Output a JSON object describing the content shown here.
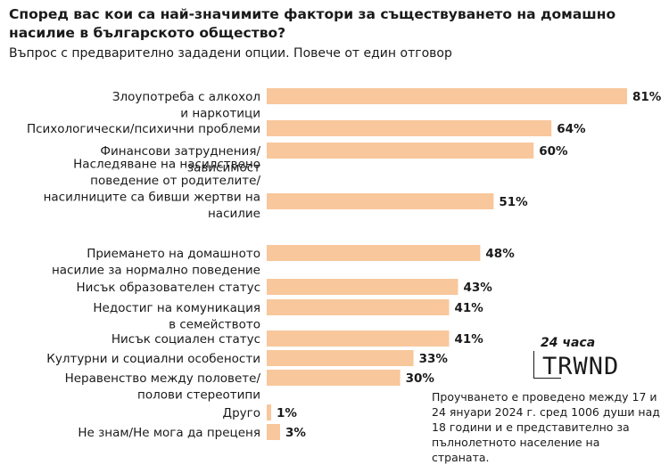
{
  "header": {
    "title": "Според вас кои са най-значимите фактори за съществуването на домашно насилие в българското общество?",
    "subtitle": "Въпрос с предварително зададени опции. Повече от един отговор"
  },
  "colors": {
    "bar": "#f8c79b",
    "text": "#1a1a1a",
    "background": "#ffffff"
  },
  "logo": {
    "brand": "24 часа",
    "word": "TRWND"
  },
  "footnote": "Проучването е проведено между 17 и 24 януари 2024 г. сред 1006 души над 18 години и е представително за пълнолетното население на страната.",
  "chart_data": {
    "type": "bar",
    "orientation": "horizontal",
    "categories": [
      "Злоупотреба с алкохол и наркотици",
      "Психологически/психични проблеми",
      "Финансови затруднения/ зависимост",
      "Наследяване на насилствено поведение от родителите/ насилниците са бивши жертви на насилие",
      "Приемането на домашното насилие за нормално поведение",
      "Нисък образователен статус",
      "Недостиг на комуникация в семейството",
      "Нисък социален статус",
      "Културни и социални особености",
      "Неравенство между половете/ полови стереотипи",
      "Друго",
      "Не знам/Не мога да преценя"
    ],
    "category_lines": [
      [
        "Злоупотреба с алкохол",
        "и наркотици"
      ],
      [
        "Психологически/психични проблеми"
      ],
      [
        "Финансови затруднения/",
        "зависимост"
      ],
      [
        "Наследяване на насилствено",
        "поведение от родителите/",
        "насилниците са бивши жертви на",
        "насилие"
      ],
      [
        "Приемането на домашното",
        "насилие за нормално поведение"
      ],
      [
        "Нисък образователен статус"
      ],
      [
        "Недостиг на комуникация",
        "в семейството"
      ],
      [
        "Нисък социален статус"
      ],
      [
        "Културни и социални особености"
      ],
      [
        "Неравенство между половете/",
        "полови стереотипи"
      ],
      [
        "Друго"
      ],
      [
        "Не знам/Не мога да преценя"
      ]
    ],
    "values": [
      81,
      64,
      60,
      51,
      48,
      43,
      41,
      41,
      33,
      30,
      1,
      3
    ],
    "value_labels": [
      "81%",
      "64%",
      "60%",
      "51%",
      "48%",
      "43%",
      "41%",
      "41%",
      "33%",
      "30%",
      "1%",
      "3%"
    ],
    "xlim": [
      0,
      100
    ],
    "unit": "%",
    "grid": false,
    "legend": "none"
  }
}
